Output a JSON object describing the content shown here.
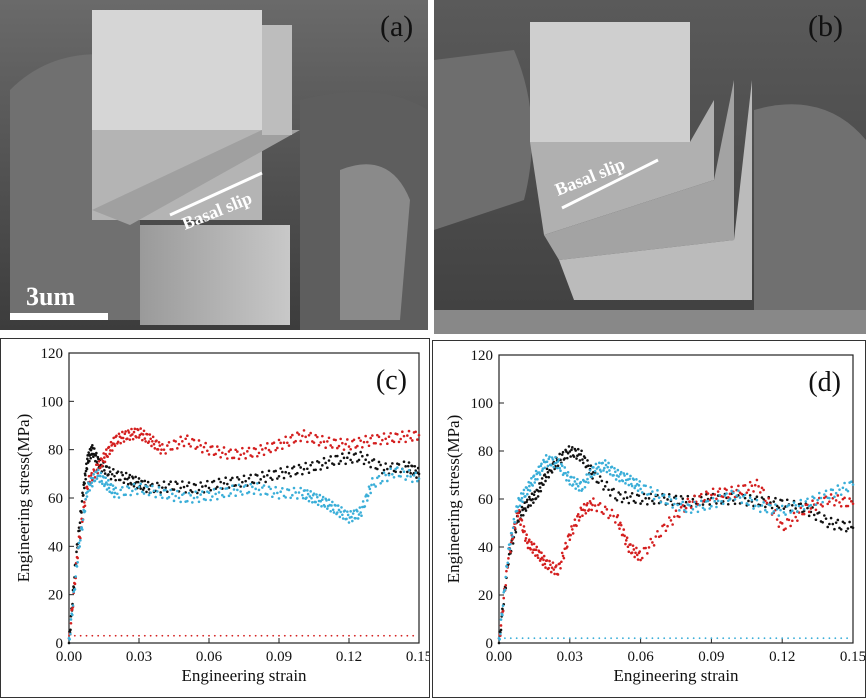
{
  "panels": {
    "a": {
      "label": "(a)",
      "annotation": "Basal slip",
      "scale_bar": "3um"
    },
    "b": {
      "label": "(b)",
      "annotation": "Basal slip"
    },
    "c": {
      "label": "(c)"
    },
    "d": {
      "label": "(d)"
    }
  },
  "chart_data": [
    {
      "type": "scatter",
      "panel": "(c)",
      "xlabel": "Engineering strain",
      "ylabel": "Engineering stress(MPa)",
      "xlim": [
        0,
        0.15
      ],
      "ylim": [
        0,
        120
      ],
      "xticks": [
        0.0,
        0.03,
        0.06,
        0.09,
        0.12,
        0.15
      ],
      "yticks": [
        0,
        20,
        40,
        60,
        80,
        100,
        120
      ],
      "series_colors": [
        "#111111",
        "#d41f1f",
        "#3aaed8"
      ],
      "series": [
        {
          "color": "#111111",
          "x": [
            0,
            0.003,
            0.006,
            0.008,
            0.01,
            0.013,
            0.018,
            0.025,
            0.03,
            0.035,
            0.045,
            0.055,
            0.065,
            0.075,
            0.085,
            0.095,
            0.105,
            0.115,
            0.125,
            0.135,
            0.145,
            0.15
          ],
          "y": [
            0,
            35,
            62,
            76,
            80,
            74,
            70,
            68,
            66,
            64,
            65,
            64,
            66,
            67,
            69,
            71,
            73,
            76,
            77,
            72,
            73,
            70
          ]
        },
        {
          "color": "#d41f1f",
          "x": [
            0,
            0.004,
            0.008,
            0.012,
            0.016,
            0.02,
            0.025,
            0.03,
            0.035,
            0.04,
            0.05,
            0.06,
            0.07,
            0.08,
            0.09,
            0.1,
            0.11,
            0.12,
            0.13,
            0.14,
            0.15
          ],
          "y": [
            0,
            40,
            66,
            72,
            78,
            84,
            86,
            87,
            84,
            80,
            84,
            80,
            78,
            79,
            82,
            86,
            83,
            82,
            84,
            85,
            86
          ]
        },
        {
          "color": "#3aaed8",
          "x": [
            0,
            0.004,
            0.008,
            0.012,
            0.016,
            0.02,
            0.03,
            0.04,
            0.05,
            0.06,
            0.07,
            0.08,
            0.09,
            0.1,
            0.105,
            0.11,
            0.115,
            0.12,
            0.125,
            0.13,
            0.14,
            0.15
          ],
          "y": [
            0,
            38,
            64,
            70,
            66,
            62,
            64,
            62,
            60,
            61,
            63,
            64,
            62,
            62,
            60,
            58,
            55,
            52,
            54,
            66,
            71,
            68
          ]
        }
      ]
    },
    {
      "type": "scatter",
      "panel": "(d)",
      "xlabel": "Engineering strain",
      "ylabel": "Engineering stress(MPa)",
      "xlim": [
        0,
        0.15
      ],
      "ylim": [
        0,
        120
      ],
      "xticks": [
        0.0,
        0.03,
        0.06,
        0.09,
        0.12,
        0.15
      ],
      "yticks": [
        0,
        20,
        40,
        60,
        80,
        100,
        120
      ],
      "series_colors": [
        "#111111",
        "#d41f1f",
        "#3aaed8"
      ],
      "series": [
        {
          "color": "#111111",
          "x": [
            0,
            0.004,
            0.008,
            0.012,
            0.016,
            0.02,
            0.025,
            0.03,
            0.035,
            0.04,
            0.05,
            0.06,
            0.07,
            0.08,
            0.09,
            0.1,
            0.11,
            0.12,
            0.13,
            0.14,
            0.15
          ],
          "y": [
            0,
            35,
            52,
            58,
            62,
            70,
            76,
            80,
            78,
            70,
            61,
            60,
            60,
            59,
            60,
            60,
            59,
            58,
            56,
            50,
            48
          ]
        },
        {
          "color": "#d41f1f",
          "x": [
            0,
            0.004,
            0.008,
            0.012,
            0.016,
            0.02,
            0.025,
            0.03,
            0.035,
            0.04,
            0.05,
            0.055,
            0.06,
            0.07,
            0.08,
            0.09,
            0.1,
            0.11,
            0.12,
            0.13,
            0.14,
            0.15
          ],
          "y": [
            0,
            36,
            55,
            42,
            38,
            33,
            30,
            45,
            55,
            58,
            52,
            40,
            36,
            48,
            58,
            62,
            63,
            66,
            48,
            56,
            60,
            58
          ]
        },
        {
          "color": "#3aaed8",
          "x": [
            0,
            0.004,
            0.008,
            0.012,
            0.016,
            0.02,
            0.025,
            0.03,
            0.035,
            0.04,
            0.045,
            0.05,
            0.055,
            0.06,
            0.07,
            0.08,
            0.09,
            0.1,
            0.11,
            0.12,
            0.13,
            0.14,
            0.15
          ],
          "y": [
            0,
            38,
            58,
            64,
            70,
            76,
            75,
            68,
            65,
            72,
            74,
            70,
            68,
            65,
            60,
            56,
            58,
            62,
            57,
            55,
            58,
            62,
            66
          ]
        }
      ]
    }
  ]
}
